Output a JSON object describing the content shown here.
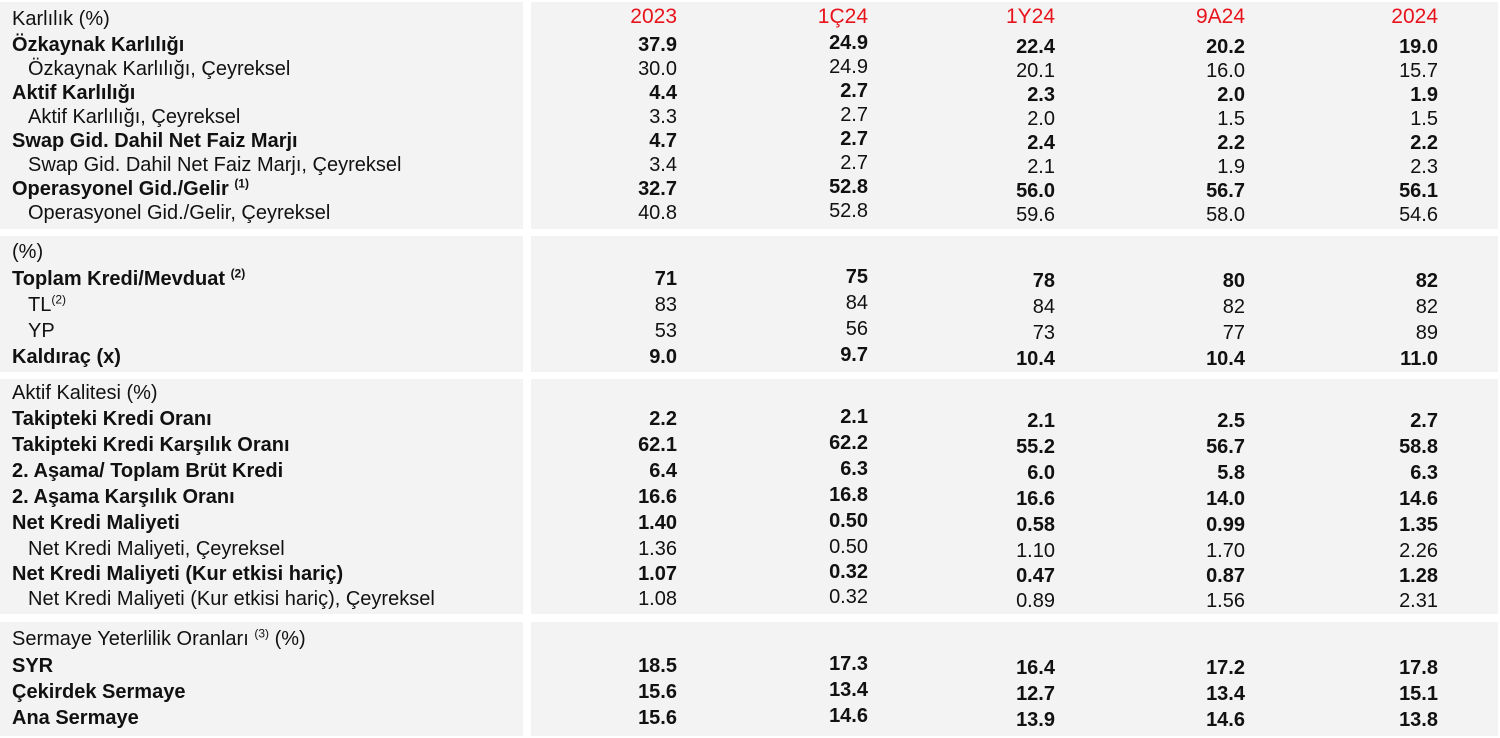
{
  "columns": [
    "2023",
    "1Ç24",
    "1Y24",
    "9A24",
    "2024"
  ],
  "sections": [
    {
      "title": "Karlılık (%)",
      "rows": [
        {
          "label": "Özkaynak Karlılığı",
          "note": "",
          "bold": true,
          "indent": false,
          "values": [
            "37.9",
            "24.9",
            "22.4",
            "20.2",
            "19.0"
          ]
        },
        {
          "label": "Özkaynak Karlılığı, Çeyreksel",
          "note": "",
          "bold": false,
          "indent": true,
          "values": [
            "30.0",
            "24.9",
            "20.1",
            "16.0",
            "15.7"
          ]
        },
        {
          "label": "Aktif Karlılığı",
          "note": "",
          "bold": true,
          "indent": false,
          "values": [
            "4.4",
            "2.7",
            "2.3",
            "2.0",
            "1.9"
          ]
        },
        {
          "label": "Aktif Karlılığı, Çeyreksel",
          "note": "",
          "bold": false,
          "indent": true,
          "values": [
            "3.3",
            "2.7",
            "2.0",
            "1.5",
            "1.5"
          ]
        },
        {
          "label": "Swap Gid. Dahil Net Faiz Marjı",
          "note": "",
          "bold": true,
          "indent": false,
          "values": [
            "4.7",
            "2.7",
            "2.4",
            "2.2",
            "2.2"
          ]
        },
        {
          "label": "Swap Gid. Dahil Net Faiz Marjı, Çeyreksel",
          "note": "",
          "bold": false,
          "indent": true,
          "values": [
            "3.4",
            "2.7",
            "2.1",
            "1.9",
            "2.3"
          ]
        },
        {
          "label": "Operasyonel Gid./Gelir",
          "note": "(1)",
          "bold": true,
          "indent": false,
          "values": [
            "32.7",
            "52.8",
            "56.0",
            "56.7",
            "56.1"
          ]
        },
        {
          "label": "Operasyonel Gid./Gelir, Çeyreksel",
          "note": "",
          "bold": false,
          "indent": true,
          "values": [
            "40.8",
            "52.8",
            "59.6",
            "58.0",
            "54.6"
          ]
        }
      ]
    },
    {
      "title": "(%)",
      "rows": [
        {
          "label": "Toplam Kredi/Mevduat",
          "note": "(2)",
          "bold": true,
          "indent": false,
          "values": [
            "71",
            "75",
            "78",
            "80",
            "82"
          ]
        },
        {
          "label": "TL",
          "note": "(2)",
          "bold": false,
          "indent": true,
          "values": [
            "83",
            "84",
            "84",
            "82",
            "82"
          ]
        },
        {
          "label": "YP",
          "note": "",
          "bold": false,
          "indent": true,
          "values": [
            "53",
            "56",
            "73",
            "77",
            "89"
          ]
        },
        {
          "label": "Kaldıraç (x)",
          "note": "",
          "bold": true,
          "indent": false,
          "values": [
            "9.0",
            "9.7",
            "10.4",
            "10.4",
            "11.0"
          ]
        }
      ]
    },
    {
      "title": "Aktif Kalitesi (%)",
      "rows": [
        {
          "label": "Takipteki Kredi Oranı",
          "note": "",
          "bold": true,
          "indent": false,
          "values": [
            "2.2",
            "2.1",
            "2.1",
            "2.5",
            "2.7"
          ]
        },
        {
          "label": "Takipteki Kredi Karşılık Oranı",
          "note": "",
          "bold": true,
          "indent": false,
          "values": [
            "62.1",
            "62.2",
            "55.2",
            "56.7",
            "58.8"
          ]
        },
        {
          "label": "2. Aşama/ Toplam Brüt Kredi",
          "note": "",
          "bold": true,
          "indent": false,
          "values": [
            "6.4",
            "6.3",
            "6.0",
            "5.8",
            "6.3"
          ]
        },
        {
          "label": "2. Aşama Karşılık Oranı",
          "note": "",
          "bold": true,
          "indent": false,
          "values": [
            "16.6",
            "16.8",
            "16.6",
            "14.0",
            "14.6"
          ]
        },
        {
          "label": "Net Kredi Maliyeti",
          "note": "",
          "bold": true,
          "indent": false,
          "values": [
            "1.40",
            "0.50",
            "0.58",
            "0.99",
            "1.35"
          ]
        },
        {
          "label": "Net Kredi Maliyeti, Çeyreksel",
          "note": "",
          "bold": false,
          "indent": true,
          "values": [
            "1.36",
            "0.50",
            "1.10",
            "1.70",
            "2.26"
          ]
        },
        {
          "label": "Net Kredi Maliyeti (Kur etkisi hariç)",
          "note": "",
          "bold": true,
          "indent": false,
          "values": [
            "1.07",
            "0.32",
            "0.47",
            "0.87",
            "1.28"
          ]
        },
        {
          "label": "Net Kredi Maliyeti (Kur etkisi hariç), Çeyreksel",
          "note": "",
          "bold": false,
          "indent": true,
          "values": [
            "1.08",
            "0.32",
            "0.89",
            "1.56",
            "2.31"
          ]
        }
      ]
    },
    {
      "title": "Sermaye Yeterlilik Oranları",
      "title_note": "(3)",
      "title_suffix": "(%)",
      "rows": [
        {
          "label": "SYR",
          "note": "",
          "bold": true,
          "indent": false,
          "values": [
            "18.5",
            "17.3",
            "16.4",
            "17.2",
            "17.8"
          ]
        },
        {
          "label": "Çekirdek Sermaye",
          "note": "",
          "bold": true,
          "indent": false,
          "values": [
            "15.6",
            "13.4",
            "12.7",
            "13.4",
            "15.1"
          ]
        },
        {
          "label": "Ana Sermaye",
          "note": "",
          "bold": true,
          "indent": false,
          "values": [
            "15.6",
            "14.6",
            "13.9",
            "14.6",
            "13.8"
          ]
        }
      ]
    }
  ]
}
